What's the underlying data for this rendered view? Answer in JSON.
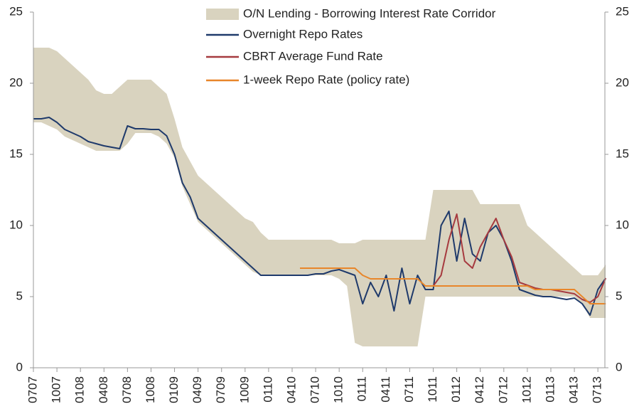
{
  "chart_data": {
    "type": "line",
    "categories": [
      "0707",
      null,
      null,
      "1007",
      null,
      null,
      "0108",
      null,
      null,
      "0408",
      null,
      null,
      "0708",
      null,
      null,
      "1008",
      null,
      null,
      "0109",
      null,
      null,
      "0409",
      null,
      null,
      "0709",
      null,
      null,
      "1009",
      null,
      null,
      "0110",
      null,
      null,
      "0410",
      null,
      null,
      "0710",
      null,
      null,
      "1010",
      null,
      null,
      "0111",
      null,
      null,
      "0411",
      null,
      null,
      "0711",
      null,
      null,
      "1011",
      null,
      null,
      "0112",
      null,
      null,
      "0412",
      null,
      null,
      "0712",
      null,
      null,
      "1012",
      null,
      null,
      "0113",
      null,
      null,
      "0413",
      null,
      null,
      "0713",
      null
    ],
    "ylim": [
      0,
      25
    ],
    "yticks": [
      0,
      5,
      10,
      15,
      20,
      25
    ],
    "y2lim": [
      0,
      25
    ],
    "y2ticks": [
      0,
      5,
      10,
      15,
      20,
      25
    ],
    "legend": "top",
    "series": [
      {
        "name": "O/N Lending - Borrowing Interest Rate Corridor",
        "type": "band",
        "color": "#d9d3bf",
        "high": [
          22.5,
          22.5,
          22.5,
          22.25,
          21.75,
          21.25,
          20.75,
          20.25,
          19.5,
          19.25,
          19.25,
          19.75,
          20.25,
          20.25,
          20.25,
          20.25,
          19.75,
          19.25,
          17.5,
          15.5,
          14.5,
          13.5,
          13,
          12.5,
          12,
          11.5,
          11,
          10.5,
          10.25,
          9.5,
          9,
          9,
          9,
          9,
          9,
          9,
          9,
          9,
          9,
          8.75,
          8.75,
          8.75,
          9,
          9,
          9,
          9,
          9,
          9,
          9,
          9,
          9,
          12.5,
          12.5,
          12.5,
          12.5,
          12.5,
          12.5,
          11.5,
          11.5,
          11.5,
          11.5,
          11.5,
          11.5,
          10,
          9.5,
          9,
          8.5,
          8,
          7.5,
          7,
          6.5,
          6.5,
          6.5,
          7.25
        ],
        "low": [
          17.25,
          17.25,
          17,
          16.75,
          16.25,
          16,
          15.75,
          15.5,
          15.25,
          15.25,
          15.25,
          15.25,
          15.75,
          16.5,
          16.5,
          16.5,
          16.25,
          15.75,
          14.75,
          12.75,
          11.5,
          10.25,
          9.75,
          9.25,
          8.75,
          8.25,
          7.75,
          7.25,
          6.75,
          6.5,
          6.5,
          6.5,
          6.5,
          6.5,
          6.5,
          6.5,
          6.5,
          6.5,
          6.5,
          6.25,
          5.75,
          1.75,
          1.5,
          1.5,
          1.5,
          1.5,
          1.5,
          1.5,
          1.5,
          1.5,
          5,
          5,
          5,
          5,
          5,
          5,
          5,
          5,
          5,
          5,
          5,
          5,
          5,
          5,
          5,
          5,
          5,
          5,
          5,
          5,
          4.5,
          3.5,
          3.5,
          3.5
        ]
      },
      {
        "name": "Overnight Repo Rates",
        "color": "#1f3a6b",
        "values": [
          17.5,
          17.5,
          17.6,
          17.25,
          16.75,
          16.5,
          16.25,
          15.9,
          15.75,
          15.6,
          15.5,
          15.4,
          17,
          16.8,
          16.8,
          16.75,
          16.75,
          16.3,
          15,
          13,
          12,
          10.5,
          10,
          9.5,
          9,
          8.5,
          8,
          7.5,
          7,
          6.5,
          6.5,
          6.5,
          6.5,
          6.5,
          6.5,
          6.5,
          6.6,
          6.6,
          6.8,
          6.9,
          6.7,
          6.5,
          4.5,
          6,
          5,
          6.5,
          4,
          7,
          4.5,
          6.5,
          5.5,
          5.5,
          10,
          11,
          7.5,
          10.5,
          8,
          7.5,
          9.5,
          10,
          9,
          7.5,
          5.5,
          5.3,
          5.1,
          5,
          5,
          4.9,
          4.8,
          4.9,
          4.5,
          3.7,
          5.5,
          6.3
        ]
      },
      {
        "name": "CBRT Average Fund Rate",
        "color": "#a63a3f",
        "values": [
          null,
          null,
          null,
          null,
          null,
          null,
          null,
          null,
          null,
          null,
          null,
          null,
          null,
          null,
          null,
          null,
          null,
          null,
          null,
          null,
          null,
          null,
          null,
          null,
          null,
          null,
          null,
          null,
          null,
          null,
          null,
          null,
          null,
          null,
          null,
          null,
          null,
          null,
          null,
          null,
          null,
          null,
          null,
          null,
          null,
          null,
          null,
          null,
          null,
          null,
          null,
          5.75,
          6.5,
          9,
          10.8,
          7.5,
          7,
          8.5,
          9.5,
          10.5,
          9,
          7.8,
          6,
          5.8,
          5.6,
          5.5,
          5.5,
          5.4,
          5.3,
          5.2,
          4.8,
          4.6,
          5,
          6.3
        ]
      },
      {
        "name": "1-week Repo Rate (policy rate)",
        "color": "#e8862a",
        "values": [
          null,
          null,
          null,
          null,
          null,
          null,
          null,
          null,
          null,
          null,
          null,
          null,
          null,
          null,
          null,
          null,
          null,
          null,
          null,
          null,
          null,
          null,
          null,
          null,
          null,
          null,
          null,
          null,
          null,
          null,
          null,
          null,
          null,
          null,
          7,
          7,
          7,
          7,
          7,
          7,
          7,
          7,
          6.5,
          6.25,
          6.25,
          6.25,
          6.25,
          6.25,
          6.25,
          6.25,
          5.75,
          5.75,
          5.75,
          5.75,
          5.75,
          5.75,
          5.75,
          5.75,
          5.75,
          5.75,
          5.75,
          5.75,
          5.75,
          5.75,
          5.5,
          5.5,
          5.5,
          5.5,
          5.5,
          5.5,
          5,
          4.5,
          4.5,
          4.5
        ]
      }
    ]
  }
}
